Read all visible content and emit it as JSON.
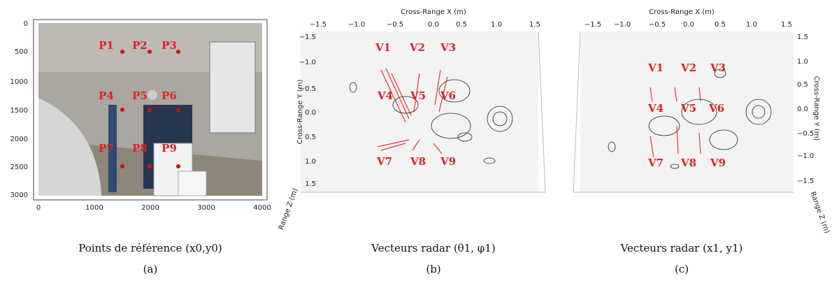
{
  "panels": [
    {
      "label": "(a)",
      "caption": "Points de référence (x0,y0)",
      "x_ticks": [
        "0",
        "1000",
        "2000",
        "3000",
        "4000"
      ],
      "y_ticks": [
        "0",
        "500",
        "1000",
        "1500",
        "2000",
        "2500",
        "3000"
      ],
      "points": [
        "P1",
        "P2",
        "P3",
        "P4",
        "P5",
        "P6",
        "P7",
        "P8",
        "P9"
      ]
    },
    {
      "label": "(b)",
      "caption": "Vecteurs radar (θ1, φ1)",
      "x_axis_title": "Cross-Range X (m)",
      "y_axis_title": "Cross-Range Y (m)",
      "z_axis_title": "Range Z (m)",
      "x_ticks": [
        "−1.5",
        "−1.0",
        "−0.5",
        "0.0",
        "0.5",
        "1.0",
        "1.5"
      ],
      "y_ticks": [
        "−1.5",
        "−1.0",
        "−0.5",
        "0.0",
        "0.5",
        "1.0",
        "1.5"
      ],
      "vectors": [
        "V1",
        "V2",
        "V3",
        "V4",
        "V5",
        "V6",
        "V7",
        "V8",
        "V9"
      ]
    },
    {
      "label": "(c)",
      "caption": "Vecteurs radar (x1, y1)",
      "x_axis_title": "Cross-Range X (m)",
      "y_axis_title": "Cross-Range Y (m)",
      "z_axis_title": "Range Z (m)",
      "x_ticks": [
        "−1.5",
        "−1.0",
        "−0.5",
        "0.0",
        "0.5",
        "1.0",
        "1.5"
      ],
      "y_ticks": [
        "1.5",
        "1.0",
        "0.5",
        "0.0",
        "−0.5",
        "−1.0",
        "−1.5"
      ],
      "vectors": [
        "V1",
        "V2",
        "V3",
        "V4",
        "V5",
        "V6",
        "V7",
        "V8",
        "V9"
      ]
    }
  ]
}
